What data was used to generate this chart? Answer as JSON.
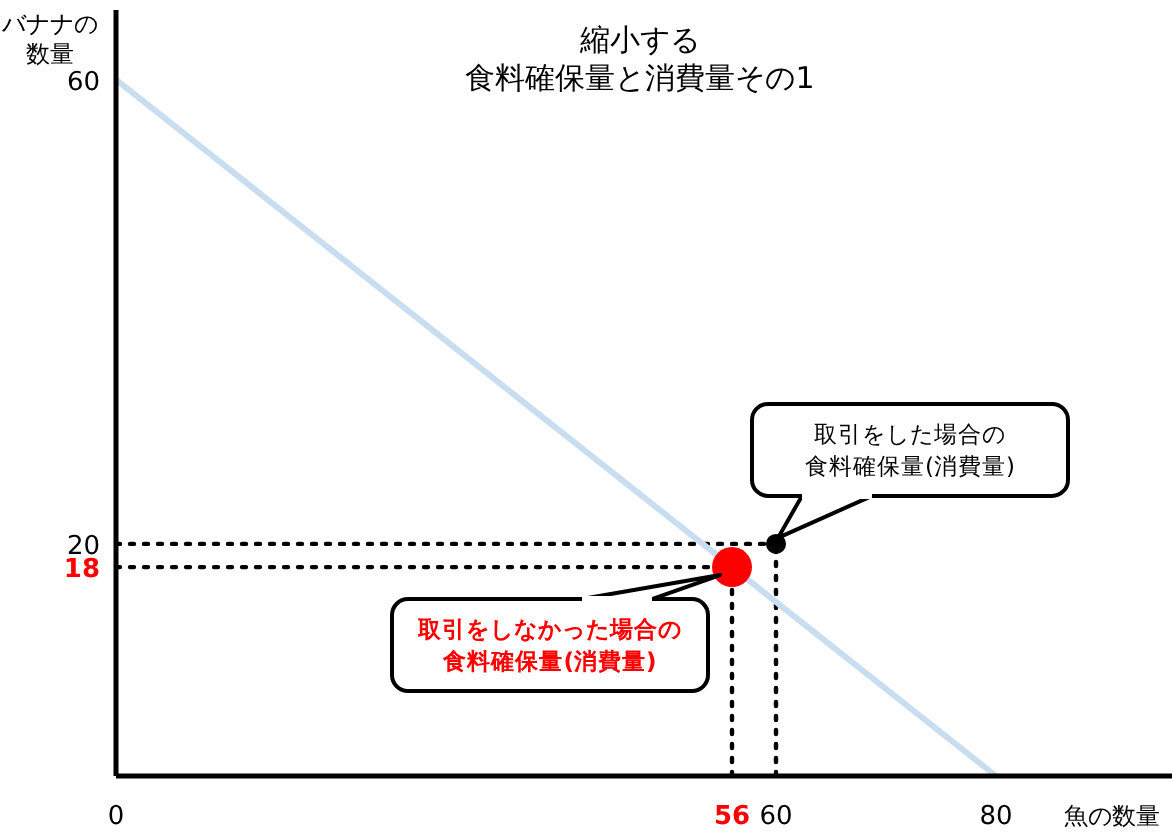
{
  "chart_data": {
    "type": "line",
    "title": "縮小する",
    "subtitle": "食料確保量と消費量その1",
    "xlabel": "魚の数量",
    "ylabel": "バナナの数量",
    "xlim": [
      0,
      96
    ],
    "ylim": [
      0,
      66
    ],
    "xticks": [
      0,
      56,
      60,
      80
    ],
    "yticks": [
      18,
      20,
      60
    ],
    "grid": false,
    "series": [
      {
        "x": [
          0,
          80
        ],
        "values": [
          60,
          0
        ],
        "color": "#c9ddf0"
      },
      {
        "type": "bubble",
        "x": [
          56,
          60
        ],
        "values": [
          18,
          20
        ],
        "sizes": [
          1,
          0.25
        ],
        "colors": [
          "#ff0000",
          "#000000"
        ]
      }
    ],
    "ref_lines": [
      {
        "axis": "y",
        "value": 20,
        "line_style": "dotted",
        "color": "#000000"
      },
      {
        "axis": "y",
        "value": 18,
        "line_style": "dotted",
        "color": "#000000"
      },
      {
        "axis": "x",
        "value": 56,
        "line_style": "dotted",
        "color": "#000000"
      },
      {
        "axis": "x",
        "value": 60,
        "line_style": "dotted",
        "color": "#000000"
      }
    ],
    "annotations": [
      {
        "text": "取引をした場合の食料確保量(消費量)",
        "x": 60,
        "y": 20
      },
      {
        "text": "取引をしなかった場合の食料確保量(消費量)",
        "x": 56,
        "y": 18
      }
    ]
  }
}
